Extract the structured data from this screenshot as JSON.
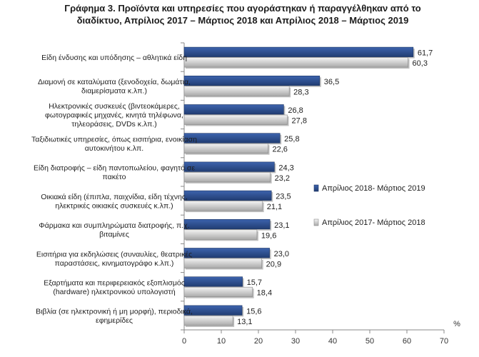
{
  "chart_data": {
    "type": "bar",
    "orientation": "horizontal",
    "title_lines": [
      "Γράφημα 3. Προϊόντα και υπηρεσίες που αγοράστηκαν ή παραγγέλθηκαν από το",
      "διαδίκτυο, Απρίλιος 2017 – Μάρτιος 2018 και Απρίλιος 2018 – Μάρτιος 2019"
    ],
    "categories": [
      [
        "Είδη ένδυσης και υπόδησης – αθλητικά είδη"
      ],
      [
        "Διαμονή σε καταλύματα (ξενοδοχεία, δωμάτια,",
        "διαμερίσματα κ.λπ.)"
      ],
      [
        "Ηλεκτρονικές συσκευές (βιντεοκάμερες,",
        "φωτογραφικές μηχανές, κινητά τηλέφωνα,",
        "τηλεοράσεις, DVDs κ.λπ.)"
      ],
      [
        "Ταξιδιωτικές υπηρεσίες, όπως εισιτήρια, ενοικίαση",
        "αυτοκινήτου κ.λπ."
      ],
      [
        "Είδη διατροφής – είδη παντοπωλείου, φαγητό σε",
        "πακέτο"
      ],
      [
        "Οικιακά είδη (έπιπλα, παιχνίδια, είδη τέχνης,",
        "ηλεκτρικές οικιακές συσκευές  κ.λπ.)"
      ],
      [
        "Φάρμακα και συμπληρώματα διατροφής,  π.χ.",
        "βιταμίνες"
      ],
      [
        "Εισιτήρια για εκδηλώσεις (συναυλίες, θεατρικές",
        "παραστάσεις, κινηματογράφο κ.λπ.)"
      ],
      [
        "Εξαρτήματα και περιφερειακός εξοπλισμός",
        "(hardware) ηλεκτρονικού υπολογιστή"
      ],
      [
        "Βιβλία (σε ηλεκτρονική ή μη μορφή), περιοδικά,",
        "εφημερίδες"
      ]
    ],
    "series": [
      {
        "name": "Απρίλιος 2018- Μάρτιος 2019",
        "color": "#2e4f8f",
        "values": [
          61.7,
          36.5,
          26.8,
          25.8,
          24.3,
          23.5,
          23.1,
          23.0,
          15.7,
          15.6
        ],
        "labels": [
          "61,7",
          "36,5",
          "26,8",
          "25,8",
          "24,3",
          "23,5",
          "23,1",
          "23,0",
          "15,7",
          "15,6"
        ]
      },
      {
        "name": "Απρίλιος 2017- Μάρτιος 2018",
        "color": "#c8c8c8",
        "values": [
          60.3,
          28.3,
          27.8,
          22.6,
          23.2,
          21.1,
          19.6,
          20.9,
          18.4,
          13.1
        ],
        "labels": [
          "60,3",
          "28,3",
          "27,8",
          "22,6",
          "23,2",
          "21,1",
          "19,6",
          "20,9",
          "18,4",
          "13,1"
        ]
      }
    ],
    "xlim": [
      0,
      70
    ],
    "xticks": [
      0,
      10,
      20,
      30,
      40,
      50,
      60,
      70
    ],
    "unit": "%",
    "legend_position": "right"
  }
}
